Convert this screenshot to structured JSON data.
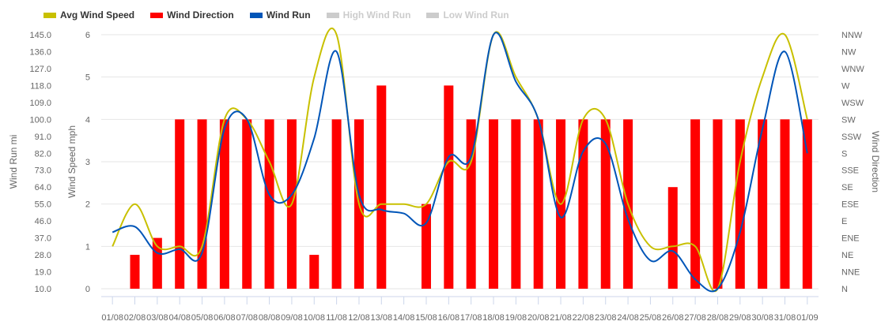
{
  "chart_data": {
    "type": "line",
    "categories": [
      "01/08",
      "02/08",
      "03/08",
      "04/08",
      "05/08",
      "06/08",
      "07/08",
      "08/08",
      "09/08",
      "10/08",
      "11/08",
      "12/08",
      "13/08",
      "14/08",
      "15/08",
      "16/08",
      "17/08",
      "18/08",
      "19/08",
      "20/08",
      "21/08",
      "22/08",
      "23/08",
      "24/08",
      "25/08",
      "26/08",
      "27/08",
      "28/08",
      "29/08",
      "30/08",
      "31/08",
      "01/09"
    ],
    "legend": [
      {
        "name": "Avg Wind Speed",
        "color": "#c8c000",
        "visible": true
      },
      {
        "name": "Wind Direction",
        "color": "#ff0000",
        "visible": true
      },
      {
        "name": "Wind Run",
        "color": "#0055b8",
        "visible": true
      },
      {
        "name": "High Wind Run",
        "color": "#cccccc",
        "visible": false
      },
      {
        "name": "Low Wind Run",
        "color": "#cccccc",
        "visible": false
      }
    ],
    "series": [
      {
        "name": "Avg Wind Speed",
        "type": "line",
        "axis": "wind_speed",
        "color": "#c8c000",
        "values": [
          1,
          2,
          1,
          1,
          1,
          4,
          4,
          3,
          2,
          5,
          6,
          2,
          2,
          2,
          2,
          3,
          3,
          6,
          5,
          4,
          2,
          4,
          4,
          2,
          1,
          1,
          1,
          0,
          3,
          5,
          6,
          4
        ]
      },
      {
        "name": "Wind Direction",
        "type": "bar",
        "axis": "wind_direction",
        "color": "#ff0000",
        "values": [
          null,
          "NE",
          "ENE",
          "SW",
          "SW",
          "SW",
          "SW",
          "SW",
          "SW",
          "NE",
          "SW",
          "SW",
          "W",
          null,
          "ESE",
          "W",
          "SW",
          "SW",
          "SW",
          "SW",
          "SW",
          "SW",
          "SW",
          "SW",
          null,
          "SE",
          "SW",
          "SW",
          "SW",
          "SW",
          "SW",
          "SW"
        ]
      },
      {
        "name": "Wind Run",
        "type": "line",
        "axis": "wind_run",
        "color": "#0055b8",
        "values": [
          40,
          43,
          29,
          31,
          29,
          95,
          100,
          60,
          60,
          90,
          136,
          60,
          52,
          50,
          45,
          80,
          80,
          145,
          120,
          100,
          48,
          83,
          87,
          47,
          25,
          30,
          15,
          10,
          40,
          95,
          136,
          82
        ]
      }
    ],
    "axes": {
      "wind_run": {
        "label": "Wind Run mi",
        "min": 10,
        "max": 145,
        "ticks": [
          "10.0",
          "19.0",
          "28.0",
          "37.0",
          "46.0",
          "55.0",
          "64.0",
          "73.0",
          "82.0",
          "91.0",
          "100.0",
          "109.0",
          "118.0",
          "127.0",
          "136.0",
          "145.0"
        ]
      },
      "wind_speed": {
        "label": "Wind Speed mph",
        "min": 0,
        "max": 6,
        "ticks": [
          "0",
          "1",
          "2",
          "3",
          "4",
          "5",
          "6"
        ]
      },
      "wind_direction": {
        "label": "Wind Direction",
        "ticks": [
          "N",
          "NNE",
          "NE",
          "ENE",
          "E",
          "ESE",
          "SE",
          "SSE",
          "S",
          "SSW",
          "SW",
          "WSW",
          "W",
          "WNW",
          "NW",
          "NNW"
        ]
      }
    },
    "grid": true,
    "legend_position": "top-left"
  }
}
